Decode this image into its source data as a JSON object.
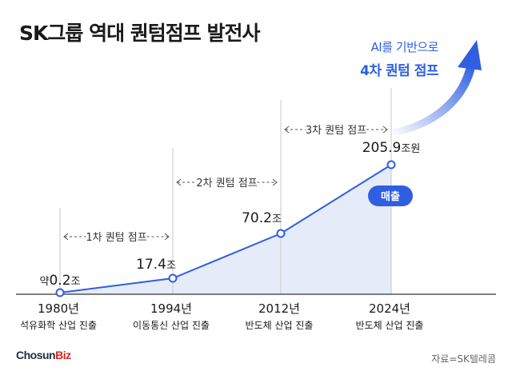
{
  "title": "SK그룹 역대 퀀텀점프 발전사",
  "headline": {
    "sub": "AI를 기반으로",
    "main": "4차 퀀텀 점프"
  },
  "source": "자료=SK텔레콤",
  "logo": {
    "part1": "Chosun",
    "part2": "Biz"
  },
  "colors": {
    "line": "#2f5fe0",
    "area": "#e6ebfa",
    "headline": "#2f5fe0",
    "badge": "#2f5fe0"
  },
  "series_badge": "매출",
  "chart_data": {
    "type": "area",
    "x": [
      "1980년",
      "1994년",
      "2012년",
      "2024년"
    ],
    "x_sublabels": [
      "석유화학 산업 진출",
      "이동통신 산업 진출",
      "반도체 산업 진출",
      "반도체 산업 진출"
    ],
    "values": [
      0.2,
      17.4,
      70.2,
      205.9
    ],
    "value_labels": [
      {
        "prefix": "약",
        "number": "0.2",
        "unit": "조"
      },
      {
        "prefix": "",
        "number": "17.4",
        "unit": "조"
      },
      {
        "prefix": "",
        "number": "70.2",
        "unit": "조"
      },
      {
        "prefix": "",
        "number": "205.9",
        "unit": "조원"
      }
    ],
    "series": [
      {
        "name": "매출",
        "values": [
          0.2,
          17.4,
          70.2,
          205.9
        ]
      }
    ],
    "jumps": [
      {
        "label": "1차 퀀텀 점프",
        "from": 0,
        "to": 1
      },
      {
        "label": "2차 퀀텀 점프",
        "from": 1,
        "to": 2
      },
      {
        "label": "3차 퀀텀 점프",
        "from": 2,
        "to": 3
      }
    ]
  }
}
